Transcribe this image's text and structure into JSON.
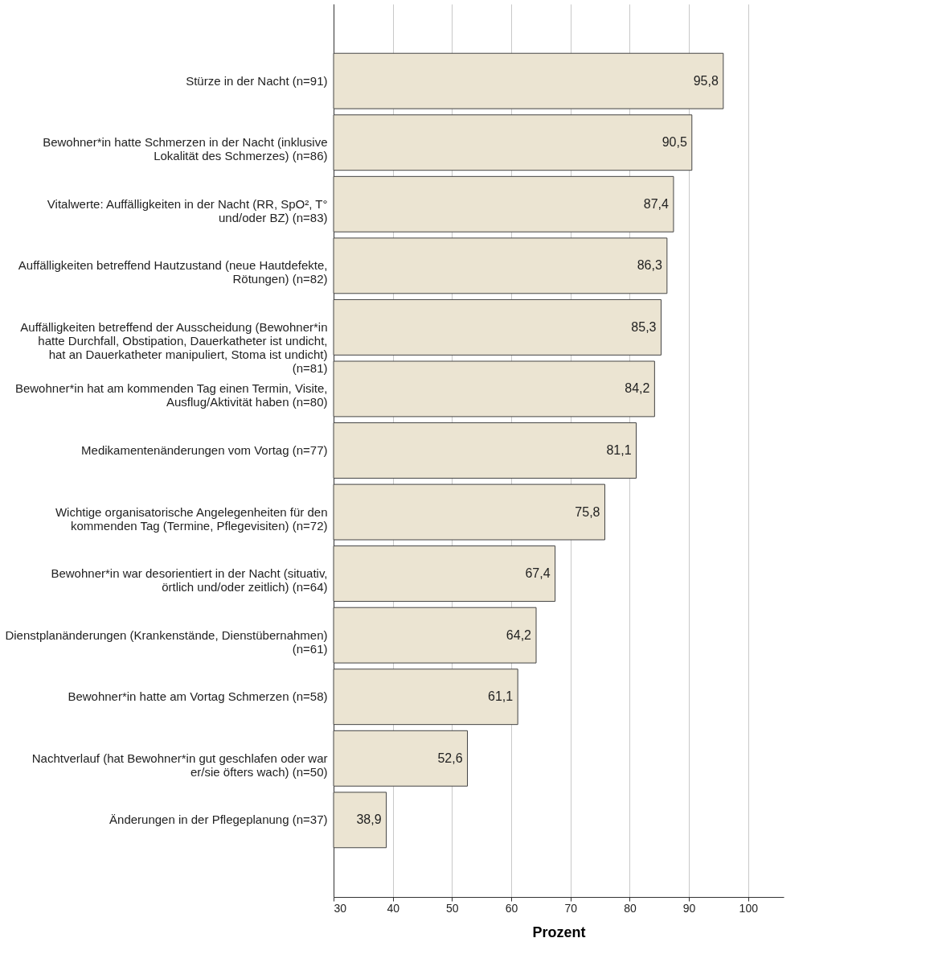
{
  "chart_data": {
    "type": "bar",
    "orientation": "horizontal",
    "xlabel": "Prozent",
    "categories": [
      "Stürze in der Nacht (n=91)",
      "Bewohner*in hatte Schmerzen in der Nacht (inklusive Lokalität des Schmerzes) (n=86)",
      "Vitalwerte: Auffälligkeiten in der Nacht (RR, SpO², T° und/oder BZ) (n=83)",
      "Auffälligkeiten betreffend Hautzustand (neue Hautdefekte, Rötungen) (n=82)",
      "Auffälligkeiten betreffend der Ausscheidung (Bewohner*in hatte Durchfall, Obstipation, Dauerkatheter ist undicht, hat an Dauerkatheter manipuliert, Stoma ist undicht) (n=81)",
      "Bewohner*in hat am kommenden Tag einen Termin, Visite, Ausflug/Aktivität haben (n=80)",
      "Medikamentenänderungen vom Vortag (n=77)",
      "Wichtige organisatorische Angelegenheiten für den kommenden Tag (Termine, Pflegevisiten) (n=72)",
      "Bewohner*in war desorientiert in der Nacht (situativ, örtlich und/oder zeitlich) (n=64)",
      "Dienstplanänderungen (Krankenstände, Dienstübernahmen) (n=61)",
      "Bewohner*in hatte am Vortag Schmerzen (n=58)",
      "Nachtverlauf (hat Bewohner*in gut geschlafen oder war er/sie öfters wach) (n=50)",
      "Änderungen in der Pflegeplanung (n=37)"
    ],
    "values": [
      95.8,
      90.5,
      87.4,
      86.3,
      85.3,
      84.2,
      81.1,
      75.8,
      67.4,
      64.2,
      61.1,
      52.6,
      38.9
    ],
    "value_labels": [
      "95,8",
      "90,5",
      "87,4",
      "86,3",
      "85,3",
      "84,2",
      "81,1",
      "75,8",
      "67,4",
      "64,2",
      "61,1",
      "52,6",
      "38,9"
    ],
    "color": "#ebe4d2",
    "xlim": [
      30,
      106
    ],
    "xticks": [
      30,
      40,
      50,
      60,
      70,
      80,
      90,
      100
    ],
    "grid": "x"
  }
}
